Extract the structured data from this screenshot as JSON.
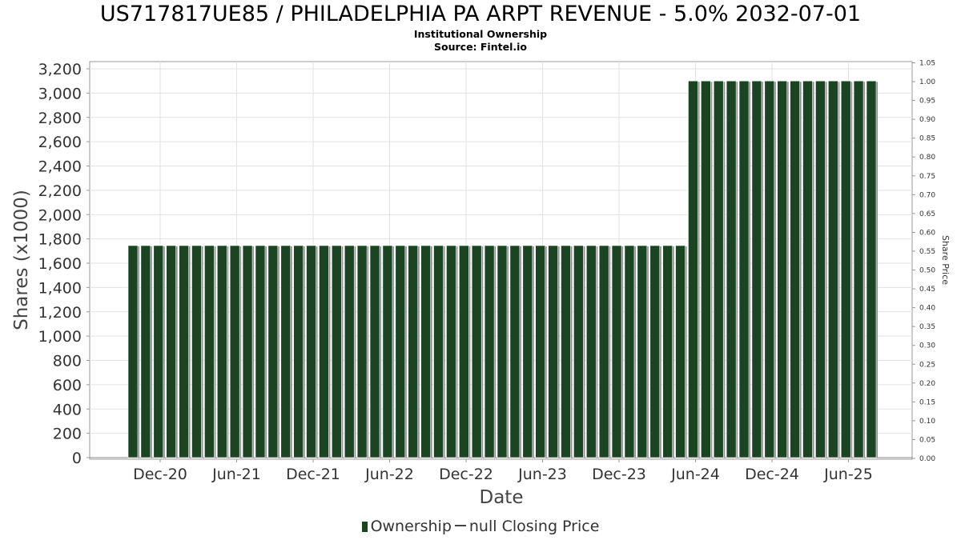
{
  "chart_data": {
    "type": "bar",
    "title": "US717817UE85 / PHILADELPHIA PA ARPT REVENUE - 5.0% 2032-07-01",
    "subtitle": "Institutional Ownership",
    "source": "Source: Fintel.io",
    "xlabel": "Date",
    "ylabel": "Shares (x1000)",
    "y2label": "Share Price",
    "ylim": [
      0,
      3250
    ],
    "y2lim": [
      0,
      1.05
    ],
    "yticks": [
      "0",
      "200",
      "400",
      "600",
      "800",
      "1,000",
      "1,200",
      "1,400",
      "1,600",
      "1,800",
      "2,000",
      "2,200",
      "2,400",
      "2,600",
      "2,800",
      "3,000",
      "3,200"
    ],
    "y2ticks": [
      "0.00",
      "0.05",
      "0.10",
      "0.15",
      "0.20",
      "0.25",
      "0.30",
      "0.35",
      "0.40",
      "0.45",
      "0.50",
      "0.55",
      "0.60",
      "0.65",
      "0.70",
      "0.75",
      "0.80",
      "0.85",
      "0.90",
      "0.95",
      "1.00",
      "1.05"
    ],
    "xticks": [
      "Dec-20",
      "Jun-21",
      "Dec-21",
      "Jun-22",
      "Dec-22",
      "Jun-23",
      "Dec-23",
      "Jun-24",
      "Dec-24",
      "Jun-25"
    ],
    "series": [
      {
        "name": "Ownership",
        "color": "#1b4423",
        "values": [
          1745,
          1745,
          1745,
          1745,
          1745,
          1745,
          1745,
          1745,
          1745,
          1745,
          1745,
          1745,
          1745,
          1745,
          1745,
          1745,
          1745,
          1745,
          1745,
          1745,
          1745,
          1745,
          1745,
          1745,
          1745,
          1745,
          1745,
          1745,
          1745,
          1745,
          1745,
          1745,
          1745,
          1745,
          1745,
          1745,
          1745,
          1745,
          1745,
          1745,
          1745,
          1745,
          1745,
          1745,
          3100,
          3100,
          3100,
          3100,
          3100,
          3100,
          3100,
          3100,
          3100,
          3100,
          3100,
          3100,
          3100,
          3100,
          3100
        ]
      }
    ],
    "grid": true,
    "legend": {
      "position": "bottom",
      "entries": [
        "Ownership",
        "null Closing Price"
      ]
    }
  }
}
